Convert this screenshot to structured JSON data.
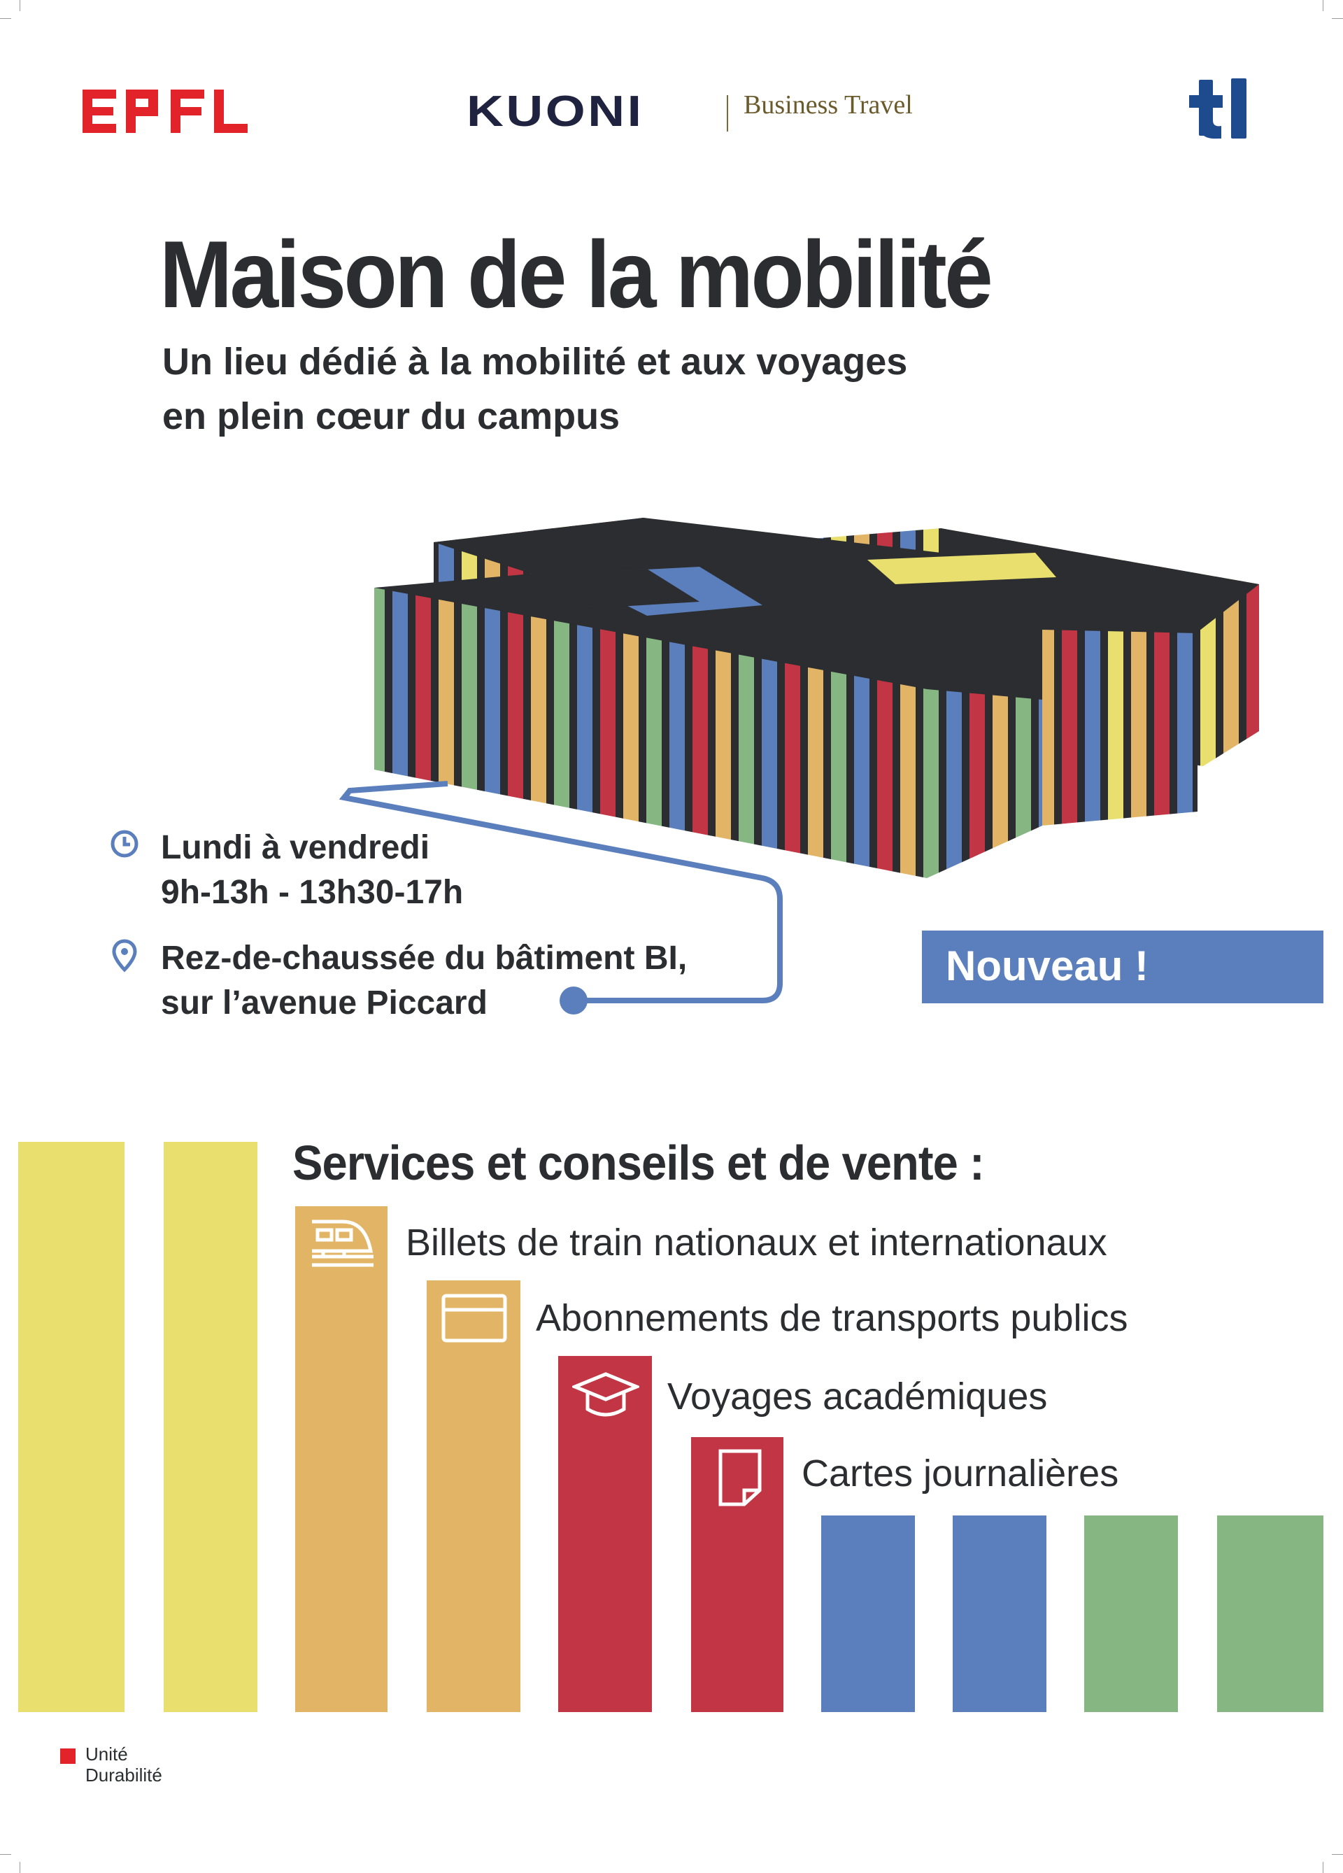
{
  "logos": {
    "epfl": "EPFL",
    "kuoni": "KUONI",
    "kuoni_sub": "Business Travel",
    "tl": "tl"
  },
  "title": "Maison de la mobilité",
  "subtitle": [
    "Un lieu dédié à la mobilité et aux voyages",
    "en plein cœur du campus"
  ],
  "hours": {
    "icon": "clock-icon",
    "days": "Lundi à vendredi",
    "times": "9h-13h - 13h30-17h"
  },
  "location": {
    "icon": "location-pin-icon",
    "line1": "Rez-de-chaussée du bâtiment BI,",
    "line2": "sur l’avenue Piccard"
  },
  "badge": "Nouveau !",
  "services": {
    "title": "Services et conseils et de vente :",
    "items": [
      {
        "icon": "train-icon",
        "label": "Billets de train nationaux et internationaux"
      },
      {
        "icon": "card-icon",
        "label": "Abonnements de transports publics"
      },
      {
        "icon": "graduation-cap-icon",
        "label": "Voyages académiques"
      },
      {
        "icon": "document-icon",
        "label": "Cartes journalières"
      }
    ]
  },
  "footer": {
    "unit": [
      "Unité",
      "Durabilité"
    ]
  },
  "colors": {
    "text": "#2b2d30",
    "yellow": "#e9df6e",
    "orange": "#e2b566",
    "red": "#c13544",
    "blue": "#5a7fbc",
    "green": "#86b783",
    "epfl_red": "#e2232a",
    "tl_blue": "#1e4b8e",
    "kuoni_navy": "#20233f",
    "roof": "#2b2d30"
  }
}
